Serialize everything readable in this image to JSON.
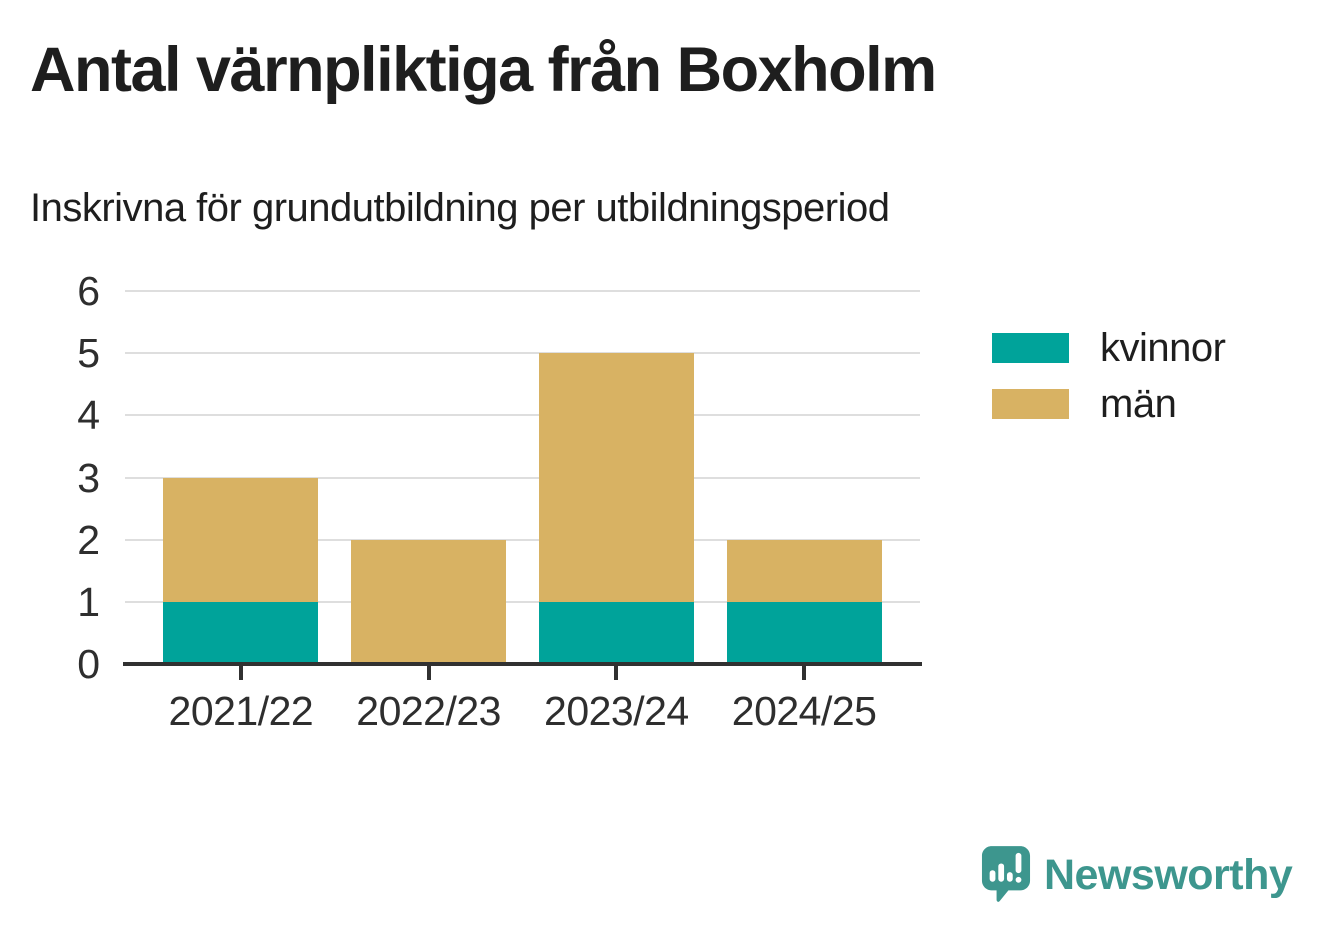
{
  "title": "Antal värnpliktiga från Boxholm",
  "subtitle": "Inskrivna för grundutbildning per utbildningsperiod",
  "chart_data": {
    "type": "bar",
    "stacked": true,
    "title": "Antal värnpliktiga från Boxholm",
    "subtitle": "Inskrivna för grundutbildning per utbildningsperiod",
    "categories": [
      "2021/22",
      "2022/23",
      "2023/24",
      "2024/25"
    ],
    "series": [
      {
        "name": "kvinnor",
        "color": "#00A39A",
        "values": [
          1,
          0,
          1,
          1
        ]
      },
      {
        "name": "män",
        "color": "#D8B263",
        "values": [
          2,
          2,
          4,
          1
        ]
      }
    ],
    "stack_totals": [
      3,
      2,
      5,
      2
    ],
    "xlabel": "",
    "ylabel": "",
    "ylim": [
      0,
      6
    ],
    "yticks": [
      0,
      1,
      2,
      3,
      4,
      5,
      6
    ],
    "grid": true,
    "legend_position": "right"
  },
  "legend": {
    "items": [
      {
        "label": "kvinnor",
        "color": "#00A39A"
      },
      {
        "label": "män",
        "color": "#D8B263"
      }
    ]
  },
  "branding": {
    "logo_text": "Newsworthy",
    "color": "#3D968E"
  }
}
